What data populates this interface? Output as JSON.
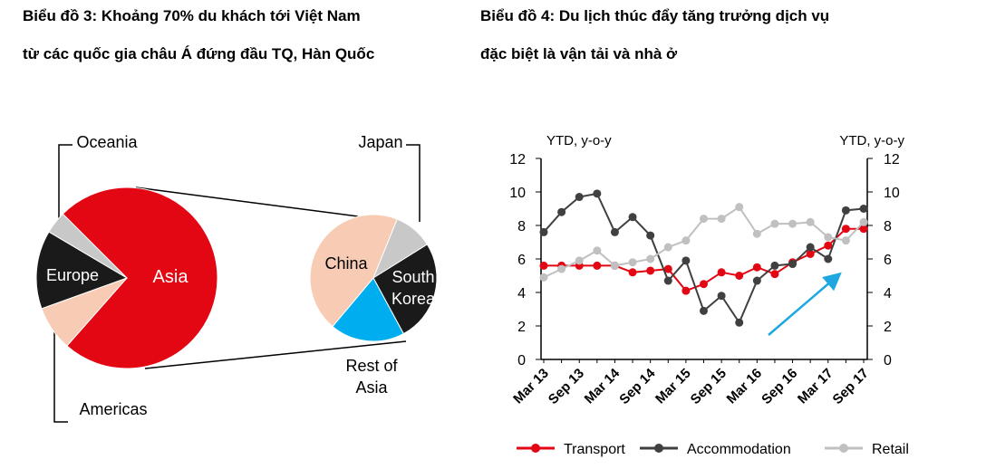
{
  "chart_data": [
    {
      "type": "pie",
      "title": [
        "Biểu đồ 3: Khoảng 70% du khách tới Việt Nam",
        "từ các quốc gia châu Á đứng đầu TQ, Hàn Quốc"
      ],
      "categories": [
        "Asia",
        "Americas",
        "Europe",
        "Oceania"
      ],
      "values": [
        74,
        8,
        14,
        4
      ],
      "colors": [
        "#e30613",
        "#f7cbb4",
        "#1a1a1a",
        "#c8c8c8"
      ],
      "breakout": {
        "categories": [
          "China",
          "Japan",
          "South Korea",
          "Rest of Asia"
        ],
        "values": [
          45,
          10,
          26,
          19
        ],
        "colors": [
          "#f7cbb4",
          "#c8c8c8",
          "#1a1a1a",
          "#00aeef"
        ]
      }
    },
    {
      "type": "line",
      "title": [
        "Biểu đồ 4: Du lịch thúc đẩy tăng trưởng dịch vụ",
        "đặc biệt là vận tải và nhà ở"
      ],
      "ylabel": "YTD, y-o-y",
      "y2label": "YTD, y-o-y",
      "categories": [
        "Mar 13",
        null,
        "Sep 13",
        null,
        "Mar 14",
        null,
        "Sep 14",
        null,
        "Mar 15",
        null,
        "Sep 15",
        null,
        "Mar 16",
        null,
        "Sep 16",
        null,
        "Mar 17",
        null,
        "Sep 17"
      ],
      "series": [
        {
          "name": "Transport",
          "color": "#e30613",
          "values": [
            5.6,
            5.6,
            5.6,
            5.6,
            5.6,
            5.2,
            5.3,
            5.4,
            4.1,
            4.5,
            5.2,
            5.0,
            5.5,
            5.1,
            5.8,
            6.3,
            6.8,
            7.8,
            7.8
          ]
        },
        {
          "name": "Accommodation",
          "color": "#404040",
          "values": [
            7.6,
            8.8,
            9.7,
            9.9,
            7.6,
            8.5,
            7.4,
            4.7,
            5.9,
            2.9,
            3.8,
            2.2,
            4.7,
            5.6,
            5.7,
            6.7,
            6.0,
            8.9,
            9.0
          ]
        },
        {
          "name": "Retail",
          "color": "#c0c0c0",
          "values": [
            4.9,
            5.4,
            5.9,
            6.5,
            5.6,
            5.8,
            6.0,
            6.7,
            7.1,
            8.4,
            8.4,
            9.1,
            7.5,
            8.1,
            8.1,
            8.2,
            7.3,
            7.1,
            8.2
          ]
        }
      ],
      "ylim": [
        0,
        12
      ],
      "yticks": [
        0,
        2,
        4,
        6,
        8,
        10,
        12
      ],
      "y2lim": [
        0,
        12
      ],
      "y2ticks": [
        0,
        2,
        4,
        6,
        8,
        10,
        12
      ],
      "legend": "bottom"
    }
  ]
}
